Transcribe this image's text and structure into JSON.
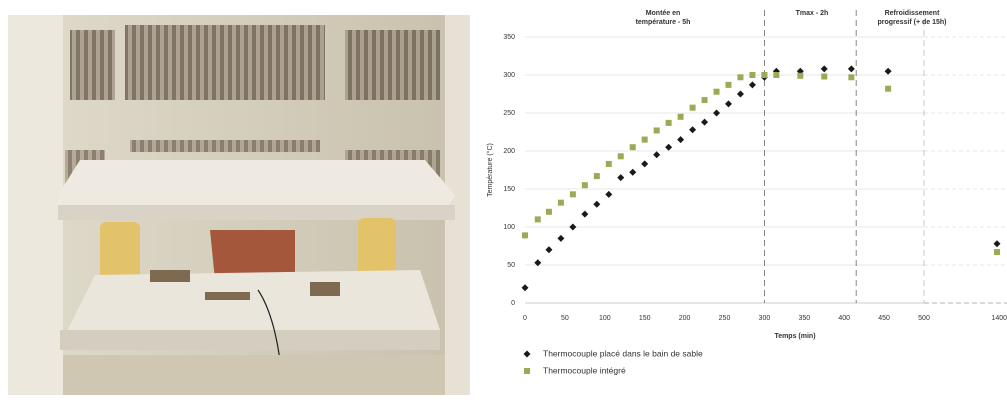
{
  "chart_data": {
    "type": "scatter",
    "annotations": [
      [
        "Montée en",
        "température - 5h"
      ],
      [
        "Tmax - 2h"
      ],
      [
        "Refroidissement",
        "progressif  (+ de 15h)"
      ]
    ],
    "x_label": "Temps (min)",
    "y_label": "Température (°C)",
    "xlim": [
      0,
      1400
    ],
    "xticks": [
      0,
      50,
      100,
      150,
      200,
      250,
      300,
      350,
      400,
      450,
      500,
      1400
    ],
    "ylim": [
      0,
      350
    ],
    "yticks": [
      0,
      50,
      100,
      150,
      200,
      250,
      300,
      350
    ],
    "phase_boundaries": [
      300,
      415,
      500
    ],
    "grid": true,
    "series": [
      {
        "name": "Thermocouple placé dans le bain de sable",
        "color": "#1a1a1a",
        "marker": "diamond",
        "x": [
          0,
          16,
          30,
          45,
          60,
          75,
          90,
          105,
          120,
          135,
          150,
          165,
          180,
          195,
          210,
          225,
          240,
          255,
          270,
          285,
          300,
          315,
          345,
          375,
          409,
          455,
          1400
        ],
        "values": [
          20,
          53,
          70,
          85,
          100,
          117,
          130,
          143,
          165,
          172,
          183,
          195,
          205,
          215,
          228,
          238,
          250,
          262,
          275,
          287,
          297,
          305,
          305,
          308,
          308,
          305,
          78
        ]
      },
      {
        "name": "Thermocouple intégré",
        "color": "#9aaa55",
        "marker": "square",
        "x": [
          0,
          16,
          30,
          45,
          60,
          75,
          90,
          105,
          120,
          135,
          150,
          165,
          180,
          195,
          210,
          225,
          240,
          255,
          270,
          285,
          300,
          315,
          345,
          375,
          409,
          455,
          1400
        ],
        "values": [
          89,
          110,
          120,
          132,
          143,
          155,
          167,
          183,
          193,
          205,
          215,
          227,
          237,
          245,
          257,
          267,
          278,
          287,
          297,
          300,
          300,
          300,
          299,
          298,
          297,
          282,
          67
        ]
      }
    ]
  }
}
